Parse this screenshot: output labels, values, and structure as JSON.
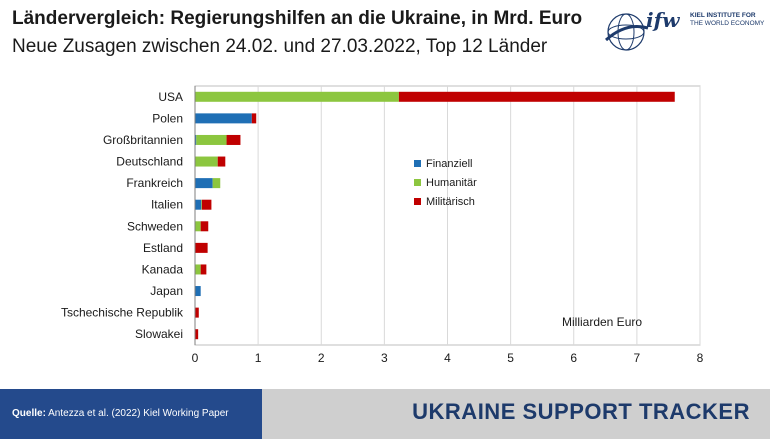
{
  "header": {
    "title": "Ländervergleich: Regierungshilfen an die Ukraine, in Mrd. Euro",
    "subtitle": "Neue Zusagen zwischen 24.02. und 27.03.2022, Top 12 Länder"
  },
  "logo": {
    "mark": "ifw",
    "line1": "KIEL INSTITUTE FOR",
    "line2": "THE WORLD ECONOMY"
  },
  "footer": {
    "source_label": "Quelle:",
    "source_text": "Antezza et al. (2022) Kiel Working Paper",
    "brand": "UKRAINE SUPPORT TRACKER"
  },
  "colors": {
    "finanziell": "#1f6fb5",
    "humanitaer": "#8cc63f",
    "militaerisch": "#c00000",
    "footer_blue": "#244a8c",
    "footer_grey": "#cfcfcf"
  },
  "chart_data": {
    "type": "bar",
    "orientation": "horizontal",
    "stacked": true,
    "categories": [
      "USA",
      "Polen",
      "Großbritannien",
      "Deutschland",
      "Frankreich",
      "Italien",
      "Schweden",
      "Estland",
      "Kanada",
      "Japan",
      "Tschechische Republik",
      "Slowakei"
    ],
    "series": [
      {
        "name": "Finanziell",
        "values": [
          0,
          0.9,
          0.02,
          0,
          0.28,
          0.1,
          0,
          0,
          0,
          0.09,
          0,
          0
        ]
      },
      {
        "name": "Humanitär",
        "values": [
          3.23,
          0,
          0.48,
          0.36,
          0.12,
          0.01,
          0.09,
          0,
          0.09,
          0,
          0,
          0
        ]
      },
      {
        "name": "Militärisch",
        "values": [
          4.37,
          0.07,
          0.22,
          0.12,
          0,
          0.15,
          0.12,
          0.2,
          0.09,
          0,
          0.06,
          0.05
        ]
      }
    ],
    "xlim": [
      0,
      8
    ],
    "xticks": [
      "0",
      "1",
      "2",
      "3",
      "4",
      "5",
      "6",
      "7",
      "8"
    ],
    "unit_label": "Milliarden Euro",
    "grid": "vertical",
    "legend": "center"
  }
}
